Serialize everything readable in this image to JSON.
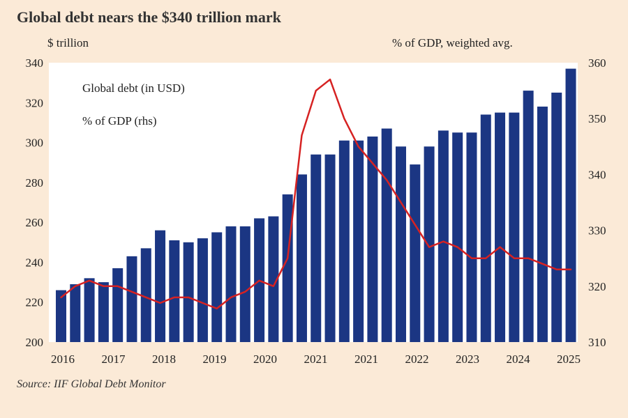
{
  "title": "Global debt nears the $340 trillion mark",
  "left_unit": "$ trillion",
  "right_unit": "% of GDP, weighted avg.",
  "source": "Source: IIF Global Debt Monitor",
  "colors": {
    "background": "#fbead7",
    "plot_background": "#ffffff",
    "bar": "#1b3683",
    "line": "#d62222",
    "legend_bar_text": "#1b3683",
    "legend_line_text": "#d62222"
  },
  "chart_data": {
    "type": "bar",
    "title": "Global debt nears the $340 trillion mark",
    "ylabel": "$ trillion",
    "y2label": "% of GDP, weighted avg.",
    "ylim": [
      200,
      340
    ],
    "y2lim": [
      310,
      360
    ],
    "yticks": [
      200,
      220,
      240,
      260,
      280,
      300,
      320,
      340
    ],
    "y2ticks": [
      310,
      320,
      330,
      340,
      350,
      360
    ],
    "xtick_labels": [
      "2016",
      "2017",
      "2018",
      "2019",
      "2020",
      "2021",
      "2021",
      "2022",
      "2023",
      "2024",
      "2025"
    ],
    "grid": false,
    "legend_placement": "top-left",
    "series": [
      {
        "name": "Global debt (in USD)",
        "kind": "bar",
        "axis": "left",
        "values": [
          226,
          229,
          232,
          230,
          237,
          243,
          247,
          256,
          251,
          250,
          252,
          255,
          258,
          258,
          262,
          263,
          274,
          284,
          294,
          294,
          301,
          301,
          303,
          307,
          298,
          289,
          298,
          306,
          305,
          305,
          314,
          315,
          315,
          326,
          318,
          325,
          337
        ]
      },
      {
        "name": "% of GDP (rhs)",
        "kind": "line",
        "axis": "right",
        "values": [
          318,
          320,
          321,
          320,
          320,
          319,
          318,
          317,
          318,
          318,
          317,
          316,
          318,
          319,
          321,
          320,
          325,
          347,
          355,
          357,
          350,
          345,
          342,
          339,
          335,
          331,
          327,
          328,
          327,
          325,
          325,
          327,
          325,
          325,
          324,
          323,
          323
        ]
      }
    ]
  }
}
